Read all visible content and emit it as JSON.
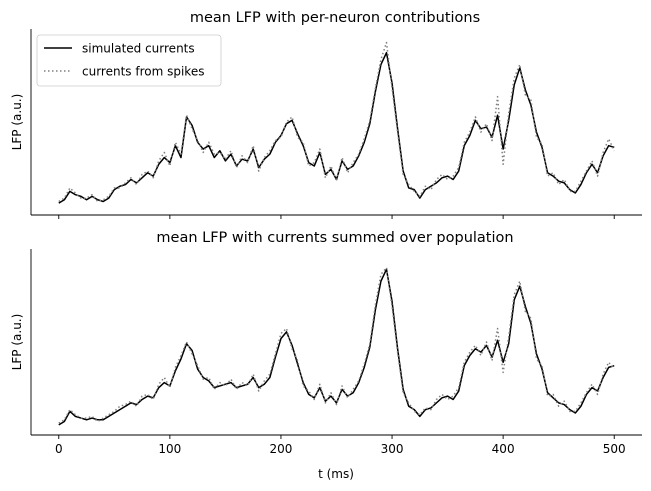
{
  "chart_data": [
    {
      "type": "line",
      "title": "mean LFP with per-neuron contributions",
      "xlabel": "",
      "ylabel": "LFP (a.u.)",
      "xlim": [
        -25,
        525
      ],
      "ylim": [
        -0.5,
        10.5
      ],
      "x_ticks": [
        0,
        100,
        200,
        300,
        400,
        500
      ],
      "x_ticklabels_visible": false,
      "y_ticks_visible": false,
      "grid": false,
      "legend": "top-left",
      "series": [
        {
          "name": "simulated currents",
          "color": "#000000",
          "style": "solid",
          "x": [
            0,
            5,
            10,
            15,
            20,
            25,
            30,
            35,
            40,
            45,
            50,
            55,
            60,
            65,
            70,
            75,
            80,
            85,
            90,
            95,
            100,
            105,
            110,
            115,
            120,
            125,
            130,
            135,
            140,
            145,
            150,
            155,
            160,
            165,
            170,
            175,
            180,
            185,
            190,
            195,
            200,
            205,
            210,
            215,
            220,
            225,
            230,
            235,
            240,
            245,
            250,
            255,
            260,
            265,
            270,
            275,
            280,
            285,
            290,
            295,
            300,
            305,
            310,
            315,
            320,
            325,
            330,
            335,
            340,
            345,
            350,
            355,
            360,
            365,
            370,
            375,
            380,
            385,
            390,
            395,
            400,
            405,
            410,
            415,
            420,
            425,
            430,
            435,
            440,
            445,
            450,
            455,
            460,
            465,
            470,
            475,
            480,
            485,
            490,
            495,
            500
          ],
          "y": [
            0.2,
            0.4,
            0.9,
            0.7,
            0.6,
            0.4,
            0.6,
            0.4,
            0.3,
            0.5,
            1.0,
            1.2,
            1.3,
            1.6,
            1.4,
            1.7,
            2.0,
            1.8,
            2.5,
            2.9,
            2.6,
            3.6,
            2.9,
            5.3,
            4.8,
            3.8,
            3.4,
            3.6,
            2.9,
            3.3,
            2.7,
            3.1,
            2.4,
            2.8,
            2.7,
            3.4,
            2.3,
            2.8,
            3.1,
            3.8,
            4.2,
            4.9,
            5.1,
            4.3,
            3.6,
            2.6,
            2.4,
            3.2,
            1.9,
            2.2,
            1.6,
            2.7,
            2.2,
            2.4,
            3.0,
            3.8,
            4.9,
            6.8,
            8.4,
            9.1,
            7.3,
            4.6,
            2.1,
            1.1,
            1.0,
            0.5,
            1.0,
            1.2,
            1.4,
            1.7,
            1.8,
            1.6,
            2.1,
            3.6,
            4.2,
            5.1,
            4.6,
            4.7,
            4.1,
            5.4,
            3.4,
            5.1,
            7.2,
            8.2,
            6.9,
            6.0,
            4.4,
            3.5,
            2.0,
            1.8,
            1.5,
            1.4,
            1.0,
            0.8,
            1.3,
            2.0,
            2.5,
            2.0,
            3.0,
            3.6,
            3.5
          ]
        },
        {
          "name": "currents from spikes",
          "color": "#7f7f7f",
          "style": "dotted",
          "x": [
            0,
            5,
            10,
            15,
            20,
            25,
            30,
            35,
            40,
            45,
            50,
            55,
            60,
            65,
            70,
            75,
            80,
            85,
            90,
            95,
            100,
            105,
            110,
            115,
            120,
            125,
            130,
            135,
            140,
            145,
            150,
            155,
            160,
            165,
            170,
            175,
            180,
            185,
            190,
            195,
            200,
            205,
            210,
            215,
            220,
            225,
            230,
            235,
            240,
            245,
            250,
            255,
            260,
            265,
            270,
            275,
            280,
            285,
            290,
            295,
            300,
            305,
            310,
            315,
            320,
            325,
            330,
            335,
            340,
            345,
            350,
            355,
            360,
            365,
            370,
            375,
            380,
            385,
            390,
            395,
            400,
            405,
            410,
            415,
            420,
            425,
            430,
            435,
            440,
            445,
            450,
            455,
            460,
            465,
            470,
            475,
            480,
            485,
            490,
            495,
            500
          ],
          "y": [
            0.3,
            0.5,
            1.1,
            0.8,
            0.5,
            0.5,
            0.7,
            0.3,
            0.4,
            0.6,
            1.1,
            1.1,
            1.4,
            1.7,
            1.3,
            1.9,
            2.1,
            1.7,
            2.7,
            3.2,
            2.4,
            3.8,
            3.1,
            5.4,
            4.6,
            3.9,
            3.2,
            3.8,
            3.1,
            3.2,
            2.8,
            3.3,
            2.3,
            3.0,
            2.6,
            3.6,
            2.1,
            2.9,
            3.3,
            3.9,
            4.1,
            5.0,
            5.3,
            4.1,
            3.8,
            2.4,
            2.6,
            3.4,
            1.7,
            2.4,
            1.5,
            2.9,
            2.0,
            2.6,
            3.1,
            4.0,
            5.1,
            7.0,
            8.7,
            9.7,
            7.0,
            4.4,
            1.9,
            1.3,
            0.9,
            0.6,
            1.2,
            1.0,
            1.6,
            1.9,
            1.6,
            1.8,
            2.3,
            3.8,
            4.4,
            5.3,
            4.4,
            4.9,
            3.9,
            6.5,
            2.5,
            5.5,
            7.6,
            8.4,
            6.6,
            6.3,
            4.1,
            3.7,
            1.8,
            2.0,
            1.3,
            1.6,
            0.9,
            0.9,
            1.5,
            2.1,
            2.7,
            1.8,
            3.2,
            4.0,
            3.3
          ]
        }
      ]
    },
    {
      "type": "line",
      "title": "mean LFP with currents summed over population",
      "xlabel": "t (ms)",
      "ylabel": "LFP (a.u.)",
      "xlim": [
        -25,
        525
      ],
      "ylim": [
        -0.5,
        10.5
      ],
      "x_ticks": [
        0,
        100,
        200,
        300,
        400,
        500
      ],
      "x_ticklabels": [
        "0",
        "100",
        "200",
        "300",
        "400",
        "500"
      ],
      "y_ticks_visible": false,
      "grid": false,
      "series": [
        {
          "color": "#000000",
          "style": "solid",
          "x": [
            0,
            5,
            10,
            15,
            20,
            25,
            30,
            35,
            40,
            45,
            50,
            55,
            60,
            65,
            70,
            75,
            80,
            85,
            90,
            95,
            100,
            105,
            110,
            115,
            120,
            125,
            130,
            135,
            140,
            145,
            150,
            155,
            160,
            165,
            170,
            175,
            180,
            185,
            190,
            195,
            200,
            205,
            210,
            215,
            220,
            225,
            230,
            235,
            240,
            245,
            250,
            255,
            260,
            265,
            270,
            275,
            280,
            285,
            290,
            295,
            300,
            305,
            310,
            315,
            320,
            325,
            330,
            335,
            340,
            345,
            350,
            355,
            360,
            365,
            370,
            375,
            380,
            385,
            390,
            395,
            400,
            405,
            410,
            415,
            420,
            425,
            430,
            435,
            440,
            445,
            450,
            455,
            460,
            465,
            470,
            475,
            480,
            485,
            490,
            495,
            500
          ],
          "y": [
            0.1,
            0.3,
            0.9,
            0.6,
            0.5,
            0.4,
            0.5,
            0.4,
            0.4,
            0.6,
            0.8,
            1.0,
            1.2,
            1.4,
            1.3,
            1.6,
            1.8,
            1.7,
            2.3,
            2.6,
            2.4,
            3.3,
            4.0,
            4.9,
            4.5,
            3.4,
            2.9,
            2.7,
            2.3,
            2.4,
            2.5,
            2.6,
            2.3,
            2.4,
            2.5,
            2.9,
            2.3,
            2.5,
            2.9,
            4.1,
            5.2,
            5.6,
            4.8,
            3.7,
            2.6,
            1.9,
            1.7,
            2.3,
            1.5,
            1.8,
            1.4,
            2.2,
            1.8,
            2.0,
            2.6,
            3.5,
            4.7,
            6.9,
            8.6,
            9.3,
            7.4,
            4.6,
            2.2,
            1.2,
            1.0,
            0.6,
            1.0,
            1.1,
            1.4,
            1.7,
            1.8,
            1.6,
            2.1,
            3.6,
            4.2,
            4.6,
            4.4,
            4.8,
            4.1,
            5.1,
            3.8,
            4.9,
            7.5,
            8.3,
            7.1,
            6.1,
            4.3,
            3.4,
            2.0,
            1.7,
            1.4,
            1.3,
            1.0,
            0.8,
            1.2,
            1.9,
            2.3,
            2.1,
            2.9,
            3.5,
            3.6
          ]
        },
        {
          "color": "#7f7f7f",
          "style": "dotted",
          "x": [
            0,
            5,
            10,
            15,
            20,
            25,
            30,
            35,
            40,
            45,
            50,
            55,
            60,
            65,
            70,
            75,
            80,
            85,
            90,
            95,
            100,
            105,
            110,
            115,
            120,
            125,
            130,
            135,
            140,
            145,
            150,
            155,
            160,
            165,
            170,
            175,
            180,
            185,
            190,
            195,
            200,
            205,
            210,
            215,
            220,
            225,
            230,
            235,
            240,
            245,
            250,
            255,
            260,
            265,
            270,
            275,
            280,
            285,
            290,
            295,
            300,
            305,
            310,
            315,
            320,
            325,
            330,
            335,
            340,
            345,
            350,
            355,
            360,
            365,
            370,
            375,
            380,
            385,
            390,
            395,
            400,
            405,
            410,
            415,
            420,
            425,
            430,
            435,
            440,
            445,
            450,
            455,
            460,
            465,
            470,
            475,
            480,
            485,
            490,
            495,
            500
          ],
          "y": [
            0.2,
            0.4,
            1.0,
            0.7,
            0.5,
            0.5,
            0.6,
            0.3,
            0.5,
            0.7,
            0.9,
            1.2,
            1.3,
            1.5,
            1.2,
            1.8,
            1.9,
            1.6,
            2.5,
            2.9,
            2.3,
            3.5,
            4.2,
            5.0,
            4.3,
            3.6,
            2.8,
            2.9,
            2.2,
            2.6,
            2.4,
            2.8,
            2.2,
            2.6,
            2.4,
            3.1,
            2.1,
            2.7,
            3.1,
            4.3,
            5.5,
            5.8,
            4.6,
            3.9,
            2.4,
            2.1,
            1.6,
            2.5,
            1.4,
            2.0,
            1.3,
            2.4,
            1.7,
            2.2,
            2.7,
            3.7,
            4.9,
            7.2,
            9.0,
            9.4,
            7.1,
            4.4,
            2.0,
            1.4,
            0.9,
            0.7,
            1.1,
            1.0,
            1.6,
            1.9,
            1.6,
            1.8,
            2.3,
            3.8,
            4.4,
            4.8,
            4.2,
            5.0,
            3.9,
            5.8,
            3.2,
            5.3,
            7.8,
            8.6,
            6.8,
            6.4,
            4.0,
            3.6,
            1.8,
            1.9,
            1.2,
            1.5,
            0.9,
            0.9,
            1.4,
            2.0,
            2.5,
            1.9,
            3.1,
            3.8,
            3.4
          ]
        }
      ]
    }
  ]
}
